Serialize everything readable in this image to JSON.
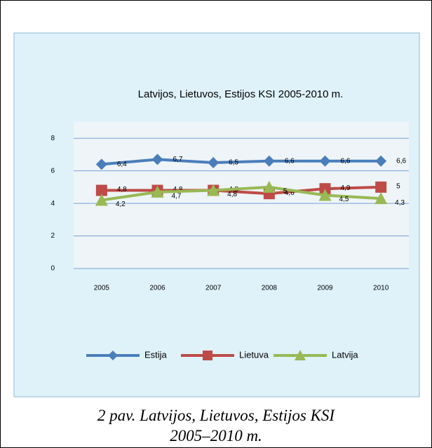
{
  "chart_data": {
    "type": "line",
    "title": "Latvijos, Lietuvos, Estijos KSI 2005-2010 m.",
    "categories": [
      "2005",
      "2006",
      "2007",
      "2008",
      "2009",
      "2010"
    ],
    "series": [
      {
        "name": "Estija",
        "color": "#4a7ebb",
        "marker": "diamond",
        "values": [
          6.4,
          6.7,
          6.5,
          6.6,
          6.6,
          6.6
        ],
        "value_labels": [
          "6,4",
          "6,7",
          "6,5",
          "6,6",
          "6,6",
          "6,6"
        ]
      },
      {
        "name": "Lietuva",
        "color": "#be4b48",
        "marker": "square",
        "values": [
          4.8,
          4.8,
          4.8,
          4.6,
          4.9,
          5
        ],
        "value_labels": [
          "4,8",
          "4,8",
          "4,8",
          "4,6",
          "4,9",
          "5"
        ]
      },
      {
        "name": "Latvija",
        "color": "#98b954",
        "marker": "triangle",
        "values": [
          4.2,
          4.7,
          4.8,
          5,
          4.5,
          4.3
        ],
        "value_labels": [
          "4,2",
          "4,7",
          "4,8",
          "5",
          "4,5",
          "4,3"
        ]
      }
    ],
    "ylim": [
      0,
      9
    ],
    "yticks": [
      0,
      2,
      4,
      6,
      8
    ],
    "grid": true,
    "legend": "bottom",
    "caption": "2 pav. Latvijos, Lietuvos, Estijos KSI 2005–2010 m."
  }
}
